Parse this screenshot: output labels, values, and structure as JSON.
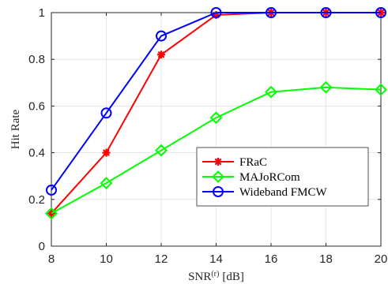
{
  "chart_data": {
    "type": "line",
    "xlabel": "SNR",
    "xlabel_superscript": "(r)",
    "xlabel_unit": "[dB]",
    "ylabel": "Hit Rate",
    "x": [
      8,
      10,
      12,
      14,
      16,
      18,
      20
    ],
    "xlim": [
      8,
      20
    ],
    "ylim": [
      0,
      1
    ],
    "x_ticks": [
      "8",
      "10",
      "12",
      "14",
      "16",
      "18",
      "20"
    ],
    "y_ticks": [
      "0",
      "0.2",
      "0.4",
      "0.6",
      "0.8",
      "1"
    ],
    "grid": true,
    "legend_position": "center-right",
    "series": [
      {
        "name": "FRaC",
        "color": "#ff0000",
        "marker": "asterisk",
        "values": [
          0.14,
          0.4,
          0.82,
          0.99,
          1.0,
          1.0,
          1.0
        ]
      },
      {
        "name": "MAJoRCom",
        "color": "#00ff00",
        "marker": "diamond",
        "values": [
          0.14,
          0.27,
          0.41,
          0.55,
          0.66,
          0.68,
          0.67
        ]
      },
      {
        "name": "Wideband FMCW",
        "color": "#0000ff",
        "marker": "circle",
        "values": [
          0.24,
          0.57,
          0.9,
          1.0,
          1.0,
          1.0,
          1.0
        ]
      }
    ]
  }
}
